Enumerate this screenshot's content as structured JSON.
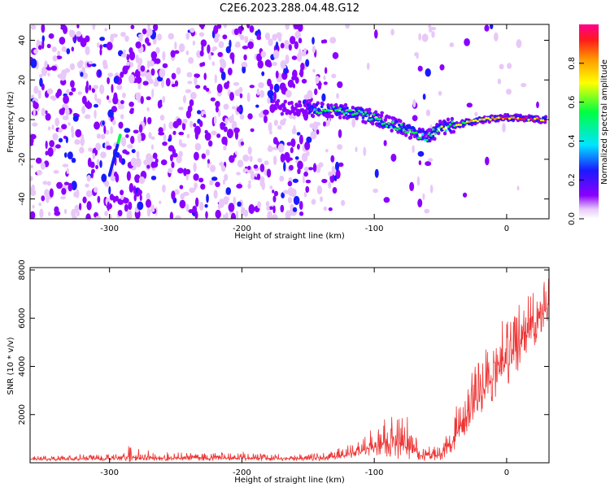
{
  "title": "C2E6.2023.288.04.48.G12",
  "chart_data": [
    {
      "type": "heatmap",
      "xlabel": "Height of straight line (km)",
      "ylabel": "Frequency (Hz)",
      "xlim": [
        -360,
        32
      ],
      "ylim": [
        -50,
        48
      ],
      "xticks": [
        -300,
        -200,
        -100,
        0
      ],
      "yticks": [
        -40,
        -20,
        0,
        20,
        40
      ],
      "grid": false,
      "colorbar": {
        "label": "Normalized spectral amplitude",
        "range": [
          0,
          1
        ],
        "ticks": [
          0.0,
          0.2,
          0.4,
          0.6,
          0.8
        ],
        "colormap": [
          "#ffffff",
          "#e8c8f8",
          "#8b00ff",
          "#1a1aff",
          "#00e5ff",
          "#00ff40",
          "#ffff00",
          "#ff9900",
          "#ff1a1a",
          "#ff0090"
        ]
      },
      "signal_track": [
        {
          "x": -175,
          "y": 6,
          "amp": 0.25
        },
        {
          "x": -140,
          "y": 5,
          "amp": 0.5
        },
        {
          "x": -120,
          "y": 4,
          "amp": 0.5
        },
        {
          "x": -100,
          "y": 1,
          "amp": 0.5
        },
        {
          "x": -80,
          "y": -4,
          "amp": 0.5
        },
        {
          "x": -60,
          "y": -9,
          "amp": 0.45
        },
        {
          "x": -50,
          "y": -4,
          "amp": 0.5
        },
        {
          "x": -40,
          "y": -3,
          "amp": 0.55
        },
        {
          "x": -20,
          "y": 0,
          "amp": 0.75
        },
        {
          "x": 0,
          "y": 1,
          "amp": 0.85
        },
        {
          "x": 30,
          "y": 0,
          "amp": 0.9
        }
      ],
      "streak": {
        "x": [
          -292,
          -300
        ],
        "y": [
          -8,
          -28
        ],
        "amp": 0.4
      }
    },
    {
      "type": "line",
      "xlabel": "Height of straight line (km)",
      "ylabel": "SNR (10 * v/v)",
      "xlim": [
        -360,
        32
      ],
      "ylim": [
        0,
        8100
      ],
      "xticks": [
        -300,
        -200,
        -100,
        0
      ],
      "yticks": [
        2000,
        4000,
        6000,
        8000
      ],
      "grid": false,
      "series": [
        {
          "color": "#ee3333",
          "envelope": [
            {
              "x": -360,
              "base": 150,
              "amp": 120
            },
            {
              "x": -290,
              "base": 170,
              "amp": 200
            },
            {
              "x": -285,
              "base": 300,
              "amp": 700
            },
            {
              "x": -280,
              "base": 200,
              "amp": 250
            },
            {
              "x": -150,
              "base": 180,
              "amp": 200
            },
            {
              "x": -130,
              "base": 250,
              "amp": 300
            },
            {
              "x": -110,
              "base": 500,
              "amp": 500
            },
            {
              "x": -90,
              "base": 800,
              "amp": 1200
            },
            {
              "x": -75,
              "base": 700,
              "amp": 1200
            },
            {
              "x": -65,
              "base": 300,
              "amp": 500
            },
            {
              "x": -50,
              "base": 300,
              "amp": 400
            },
            {
              "x": -40,
              "base": 900,
              "amp": 900
            },
            {
              "x": -25,
              "base": 2500,
              "amp": 1700
            },
            {
              "x": -10,
              "base": 3500,
              "amp": 2000
            },
            {
              "x": 0,
              "base": 4200,
              "amp": 2000
            },
            {
              "x": 15,
              "base": 5300,
              "amp": 2000
            },
            {
              "x": 32,
              "base": 6600,
              "amp": 1400
            }
          ]
        }
      ]
    }
  ]
}
